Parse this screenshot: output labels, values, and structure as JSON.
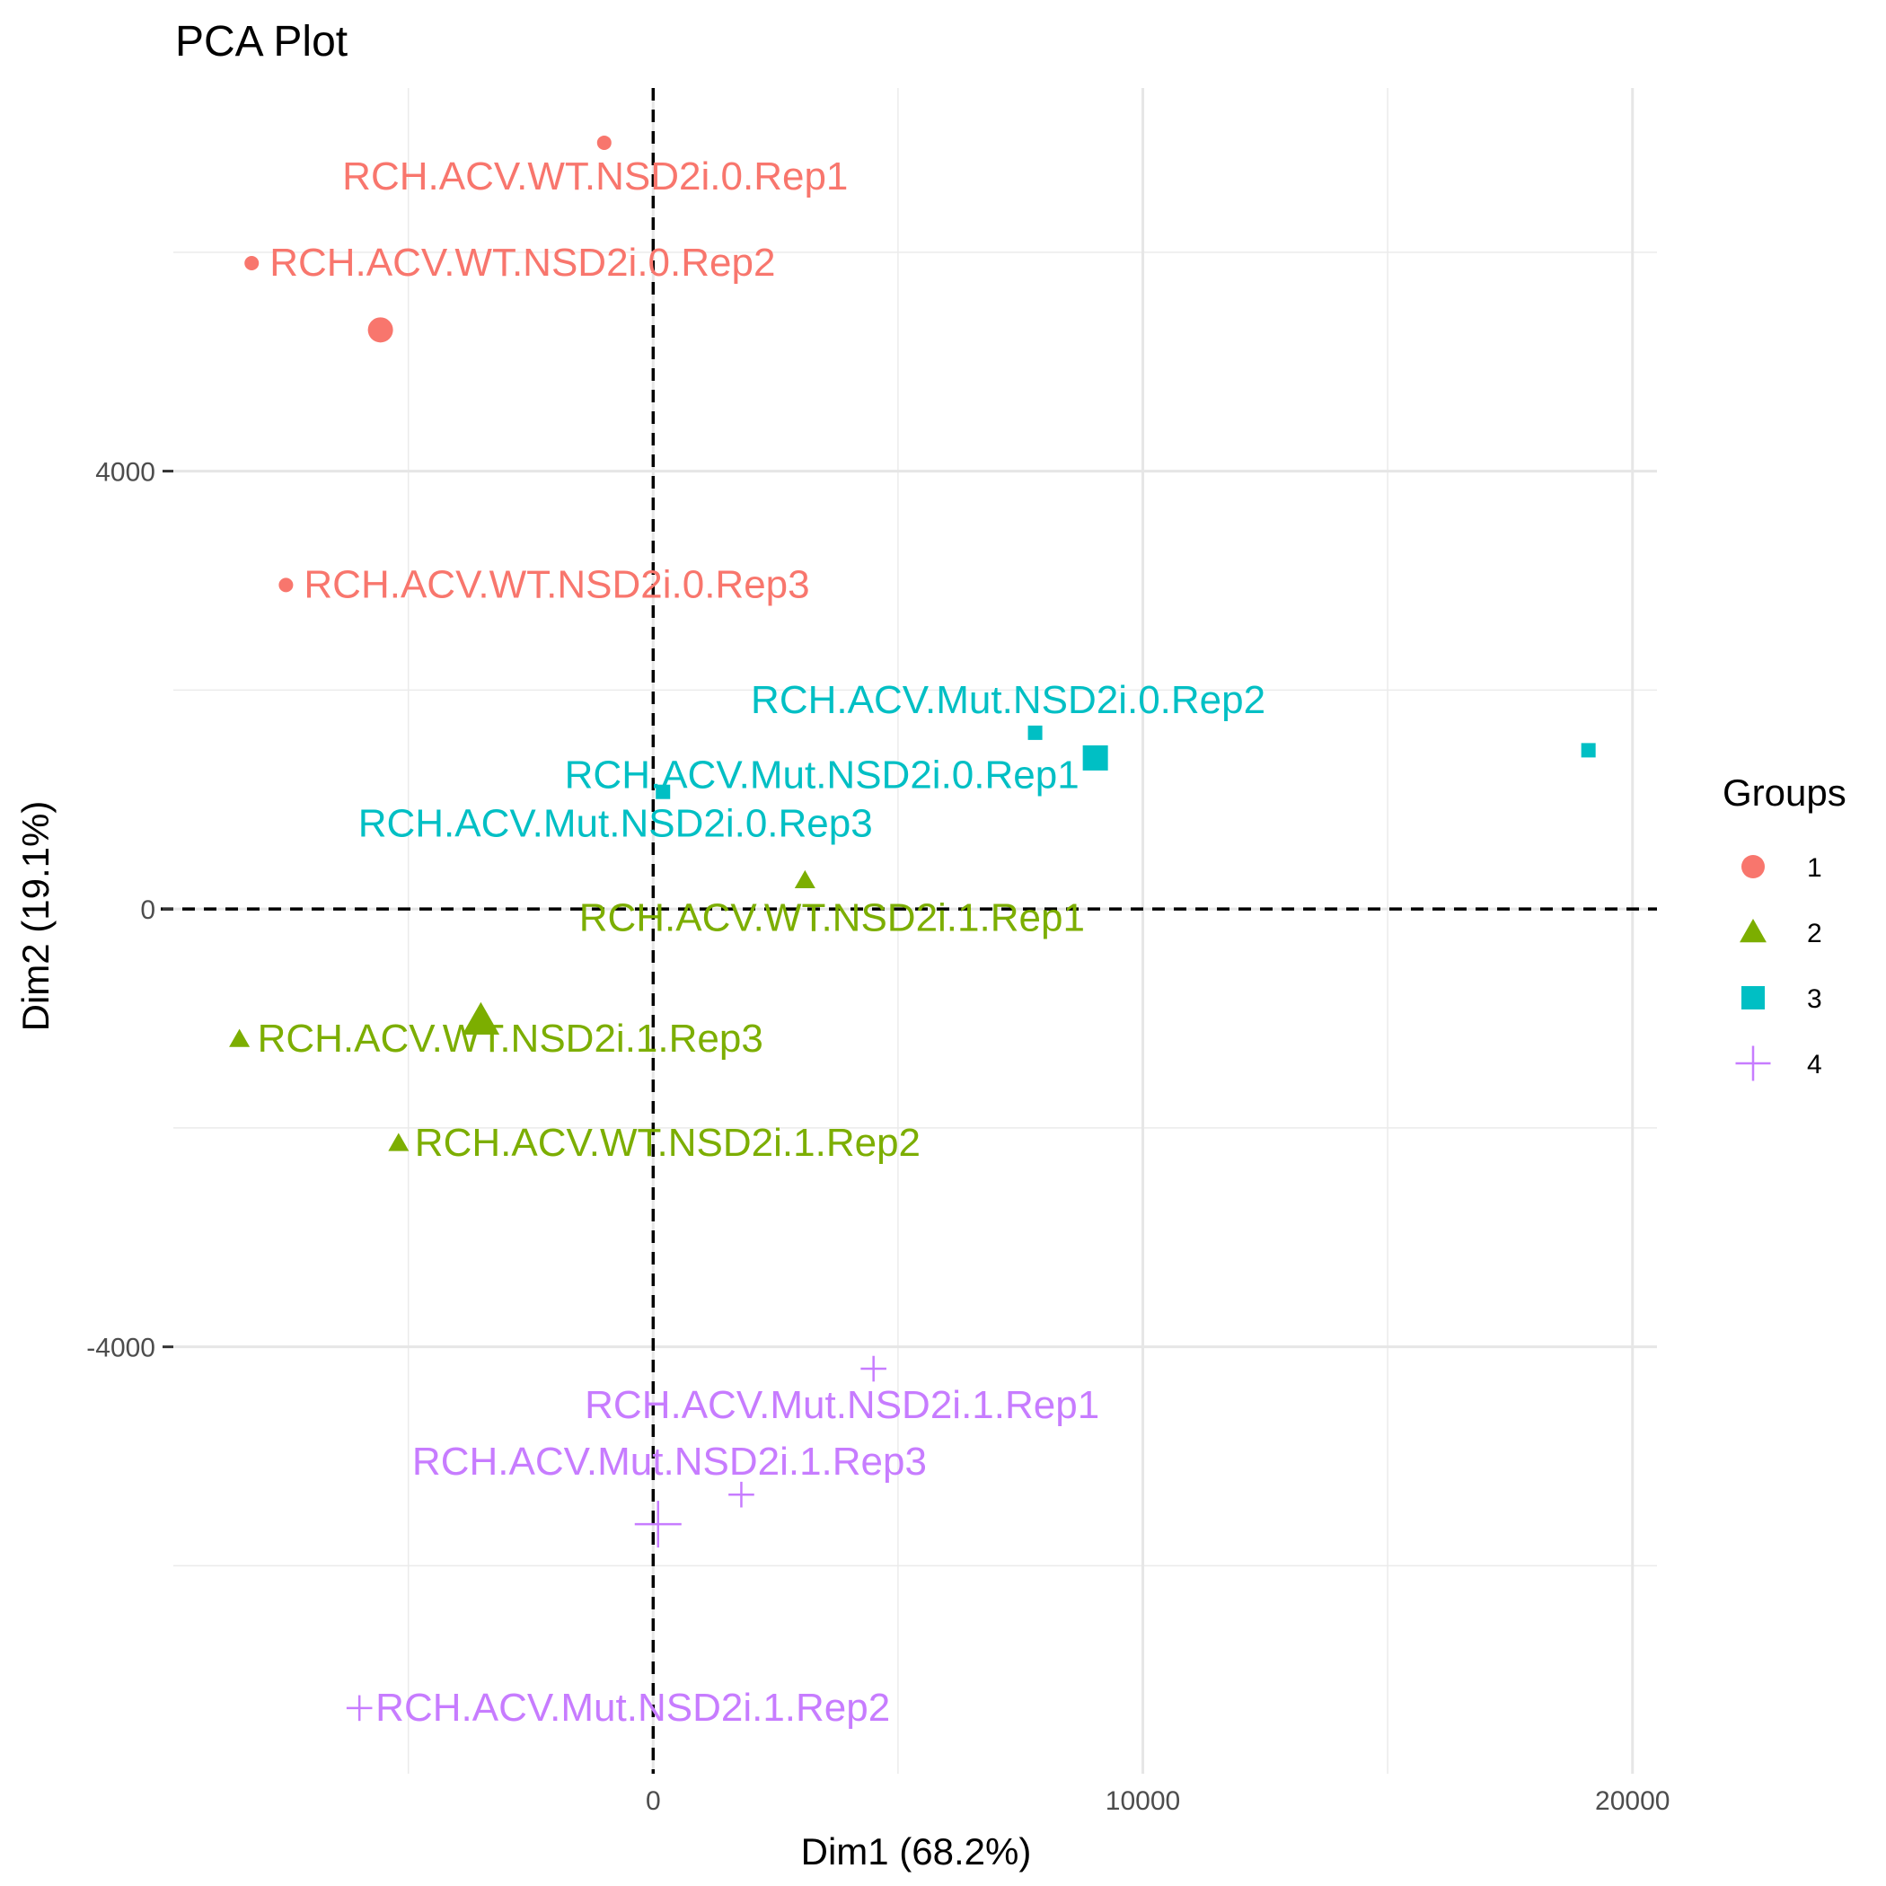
{
  "chart_data": {
    "type": "scatter",
    "title": "PCA Plot",
    "xlabel": "Dim1 (68.2%)",
    "ylabel": "Dim2 (19.1%)",
    "xlim": [
      -9800,
      20500
    ],
    "ylim": [
      -7900,
      7500
    ],
    "x_major_ticks": [
      0,
      10000,
      20000
    ],
    "x_tick_labels": [
      "0",
      "10000",
      "20000"
    ],
    "x_minor_gridlines": [
      -5000,
      5000,
      15000
    ],
    "y_major_ticks": [
      -4000,
      0,
      4000
    ],
    "y_tick_labels": [
      "-4000",
      "0",
      "4000"
    ],
    "y_minor_gridlines": [
      -6000,
      -2000,
      2000,
      6000
    ],
    "reference_lines": {
      "x": 0,
      "y": 0,
      "style": "dashed"
    },
    "grid": true,
    "legend": {
      "title": "Groups",
      "position": "right",
      "entries": [
        {
          "label": "1",
          "shape": "circle",
          "color": "#F8766D"
        },
        {
          "label": "2",
          "shape": "triangle",
          "color": "#7CAE00"
        },
        {
          "label": "3",
          "shape": "square",
          "color": "#00BFC4"
        },
        {
          "label": "4",
          "shape": "cross",
          "color": "#C77CFF"
        }
      ]
    },
    "series": [
      {
        "name": "1",
        "shape": "circle",
        "color": "#F8766D",
        "points": [
          {
            "x": -1000,
            "y": 7000,
            "label": "RCH.ACV.WT.NSD2i.0.Rep1"
          },
          {
            "x": -8200,
            "y": 5900,
            "label": "RCH.ACV.WT.NSD2i.0.Rep2"
          },
          {
            "x": -7500,
            "y": 2960,
            "label": "RCH.ACV.WT.NSD2i.0.Rep3"
          }
        ],
        "centroid": {
          "x": -5570,
          "y": 5290
        }
      },
      {
        "name": "2",
        "shape": "triangle",
        "color": "#7CAE00",
        "points": [
          {
            "x": 3100,
            "y": 260,
            "label": "RCH.ACV.WT.NSD2i.1.Rep1"
          },
          {
            "x": -5200,
            "y": -2140,
            "label": "RCH.ACV.WT.NSD2i.1.Rep2"
          },
          {
            "x": -8450,
            "y": -1190,
            "label": "RCH.ACV.WT.NSD2i.1.Rep3"
          }
        ],
        "centroid": {
          "x": -3520,
          "y": -1020
        }
      },
      {
        "name": "3",
        "shape": "square",
        "color": "#00BFC4",
        "points": [
          {
            "x": 19100,
            "y": 1450,
            "label": "RCH.ACV.Mut.NSD2i.0.Rep1"
          },
          {
            "x": 7800,
            "y": 1610,
            "label": "RCH.ACV.Mut.NSD2i.0.Rep2"
          },
          {
            "x": 200,
            "y": 1070,
            "label": "RCH.ACV.Mut.NSD2i.0.Rep3"
          }
        ],
        "centroid": {
          "x": 9030,
          "y": 1380
        }
      },
      {
        "name": "4",
        "shape": "cross",
        "color": "#C77CFF",
        "points": [
          {
            "x": 4500,
            "y": -4200,
            "label": "RCH.ACV.Mut.NSD2i.1.Rep1"
          },
          {
            "x": -6000,
            "y": -7300,
            "label": "RCH.ACV.Mut.NSD2i.1.Rep2"
          },
          {
            "x": 1800,
            "y": -5350,
            "label": "RCH.ACV.Mut.NSD2i.1.Rep3"
          }
        ],
        "centroid": {
          "x": 100,
          "y": -5620
        }
      }
    ]
  }
}
